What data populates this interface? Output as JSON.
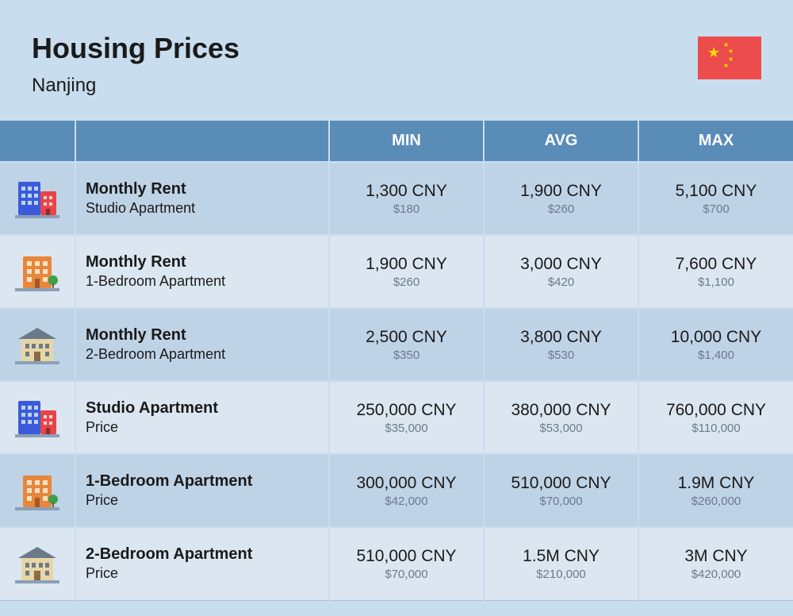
{
  "header": {
    "title": "Housing Prices",
    "city": "Nanjing"
  },
  "flag": {
    "bg_color": "#ec4c4c",
    "star_color": "#ffde00"
  },
  "table": {
    "columns": [
      "MIN",
      "AVG",
      "MAX"
    ],
    "header_bg_color": "#5a8cb8",
    "header_text_color": "#ffffff",
    "row_odd_bg": "#bfd3e6",
    "row_even_bg": "#dbe6f0",
    "border_color": "#c8ddee",
    "primary_text_color": "#1a1a1a",
    "secondary_text_color": "#6b7a8a",
    "rows": [
      {
        "icon": "building-studio",
        "title": "Monthly Rent",
        "subtitle": "Studio Apartment",
        "min": {
          "primary": "1,300 CNY",
          "secondary": "$180"
        },
        "avg": {
          "primary": "1,900 CNY",
          "secondary": "$260"
        },
        "max": {
          "primary": "5,100 CNY",
          "secondary": "$700"
        }
      },
      {
        "icon": "building-1br",
        "title": "Monthly Rent",
        "subtitle": "1-Bedroom Apartment",
        "min": {
          "primary": "1,900 CNY",
          "secondary": "$260"
        },
        "avg": {
          "primary": "3,000 CNY",
          "secondary": "$420"
        },
        "max": {
          "primary": "7,600 CNY",
          "secondary": "$1,100"
        }
      },
      {
        "icon": "building-2br",
        "title": "Monthly Rent",
        "subtitle": "2-Bedroom Apartment",
        "min": {
          "primary": "2,500 CNY",
          "secondary": "$350"
        },
        "avg": {
          "primary": "3,800 CNY",
          "secondary": "$530"
        },
        "max": {
          "primary": "10,000 CNY",
          "secondary": "$1,400"
        }
      },
      {
        "icon": "building-studio",
        "title": "Studio Apartment",
        "subtitle": "Price",
        "min": {
          "primary": "250,000 CNY",
          "secondary": "$35,000"
        },
        "avg": {
          "primary": "380,000 CNY",
          "secondary": "$53,000"
        },
        "max": {
          "primary": "760,000 CNY",
          "secondary": "$110,000"
        }
      },
      {
        "icon": "building-1br",
        "title": "1-Bedroom Apartment",
        "subtitle": "Price",
        "min": {
          "primary": "300,000 CNY",
          "secondary": "$42,000"
        },
        "avg": {
          "primary": "510,000 CNY",
          "secondary": "$70,000"
        },
        "max": {
          "primary": "1.9M CNY",
          "secondary": "$260,000"
        }
      },
      {
        "icon": "building-2br",
        "title": "2-Bedroom Apartment",
        "subtitle": "Price",
        "min": {
          "primary": "510,000 CNY",
          "secondary": "$70,000"
        },
        "avg": {
          "primary": "1.5M CNY",
          "secondary": "$210,000"
        },
        "max": {
          "primary": "3M CNY",
          "secondary": "$420,000"
        }
      }
    ]
  },
  "icon_colors": {
    "building-studio": {
      "primary": "#3b5bdb",
      "secondary": "#e64549"
    },
    "building-1br": {
      "primary": "#e6873c",
      "secondary": "#3fa04a"
    },
    "building-2br": {
      "primary": "#e8d7a6",
      "secondary": "#6b7a8a"
    }
  },
  "page_bg_color": "#c8ddee"
}
